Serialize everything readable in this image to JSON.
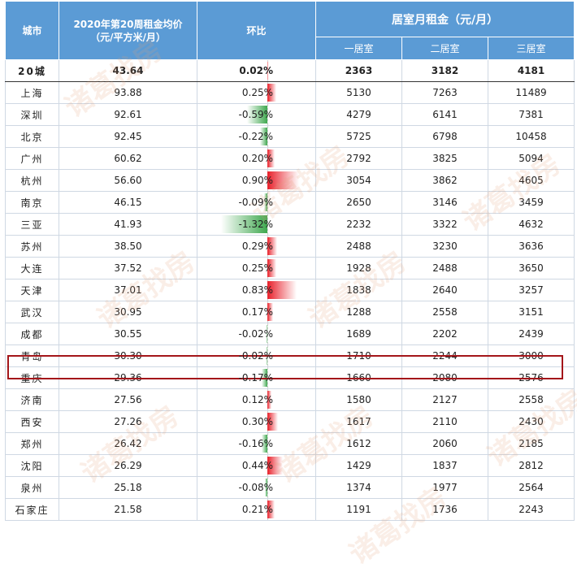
{
  "headers": {
    "city": "城市",
    "avg_price": "2020年第20周租金均价\n（元/平方米/月）",
    "change": "环比",
    "rent_group": "居室月租金（元/月）",
    "room1": "一居室",
    "room2": "二居室",
    "room3": "三居室"
  },
  "rows": [
    {
      "city": "20城",
      "price": "43.64",
      "change": "0.02%",
      "chg": 0.02,
      "r1": "2363",
      "r2": "3182",
      "r3": "4181"
    },
    {
      "city": "上海",
      "price": "93.88",
      "change": "0.25%",
      "chg": 0.25,
      "r1": "5130",
      "r2": "7263",
      "r3": "11489"
    },
    {
      "city": "深圳",
      "price": "92.61",
      "change": "-0.59%",
      "chg": -0.59,
      "r1": "4279",
      "r2": "6141",
      "r3": "7381"
    },
    {
      "city": "北京",
      "price": "92.45",
      "change": "-0.22%",
      "chg": -0.22,
      "r1": "5725",
      "r2": "6798",
      "r3": "10458"
    },
    {
      "city": "广州",
      "price": "60.62",
      "change": "0.20%",
      "chg": 0.2,
      "r1": "2792",
      "r2": "3825",
      "r3": "5094"
    },
    {
      "city": "杭州",
      "price": "56.60",
      "change": "0.90%",
      "chg": 0.9,
      "r1": "3054",
      "r2": "3862",
      "r3": "4605"
    },
    {
      "city": "南京",
      "price": "46.15",
      "change": "-0.09%",
      "chg": -0.09,
      "r1": "2650",
      "r2": "3146",
      "r3": "3459"
    },
    {
      "city": "三亚",
      "price": "41.93",
      "change": "-1.32%",
      "chg": -1.32,
      "r1": "2232",
      "r2": "3322",
      "r3": "4632"
    },
    {
      "city": "苏州",
      "price": "38.50",
      "change": "0.29%",
      "chg": 0.29,
      "r1": "2488",
      "r2": "3230",
      "r3": "3636"
    },
    {
      "city": "大连",
      "price": "37.52",
      "change": "0.25%",
      "chg": 0.25,
      "r1": "1928",
      "r2": "2488",
      "r3": "3650"
    },
    {
      "city": "天津",
      "price": "37.01",
      "change": "0.83%",
      "chg": 0.83,
      "r1": "1838",
      "r2": "2640",
      "r3": "3257"
    },
    {
      "city": "武汉",
      "price": "30.95",
      "change": "0.17%",
      "chg": 0.17,
      "r1": "1288",
      "r2": "2558",
      "r3": "3151"
    },
    {
      "city": "成都",
      "price": "30.55",
      "change": "-0.02%",
      "chg": -0.02,
      "r1": "1689",
      "r2": "2202",
      "r3": "2439"
    },
    {
      "city": "青岛",
      "price": "30.30",
      "change": "-0.02%",
      "chg": -0.02,
      "r1": "1710",
      "r2": "2244",
      "r3": "3000"
    },
    {
      "city": "重庆",
      "price": "29.36",
      "change": "-0.17%",
      "chg": -0.17,
      "r1": "1660",
      "r2": "2080",
      "r3": "2576"
    },
    {
      "city": "济南",
      "price": "27.56",
      "change": "0.12%",
      "chg": 0.12,
      "r1": "1580",
      "r2": "2127",
      "r3": "2558"
    },
    {
      "city": "西安",
      "price": "27.26",
      "change": "0.30%",
      "chg": 0.3,
      "r1": "1617",
      "r2": "2110",
      "r3": "2430"
    },
    {
      "city": "郑州",
      "price": "26.42",
      "change": "-0.16%",
      "chg": -0.16,
      "r1": "1612",
      "r2": "2060",
      "r3": "2185"
    },
    {
      "city": "沈阳",
      "price": "26.29",
      "change": "0.44%",
      "chg": 0.44,
      "r1": "1429",
      "r2": "1837",
      "r3": "2812"
    },
    {
      "city": "泉州",
      "price": "25.18",
      "change": "-0.08%",
      "chg": -0.08,
      "r1": "1374",
      "r2": "1977",
      "r3": "2564"
    },
    {
      "city": "石家庄",
      "price": "21.58",
      "change": "0.21%",
      "chg": 0.21,
      "r1": "1191",
      "r2": "1736",
      "r3": "2243"
    }
  ],
  "watermark": "诸葛找房",
  "colors": {
    "header": "#5b9bd5",
    "positive": "#e8202a",
    "negative": "#3fa84f",
    "highlight": "#a4161a"
  }
}
